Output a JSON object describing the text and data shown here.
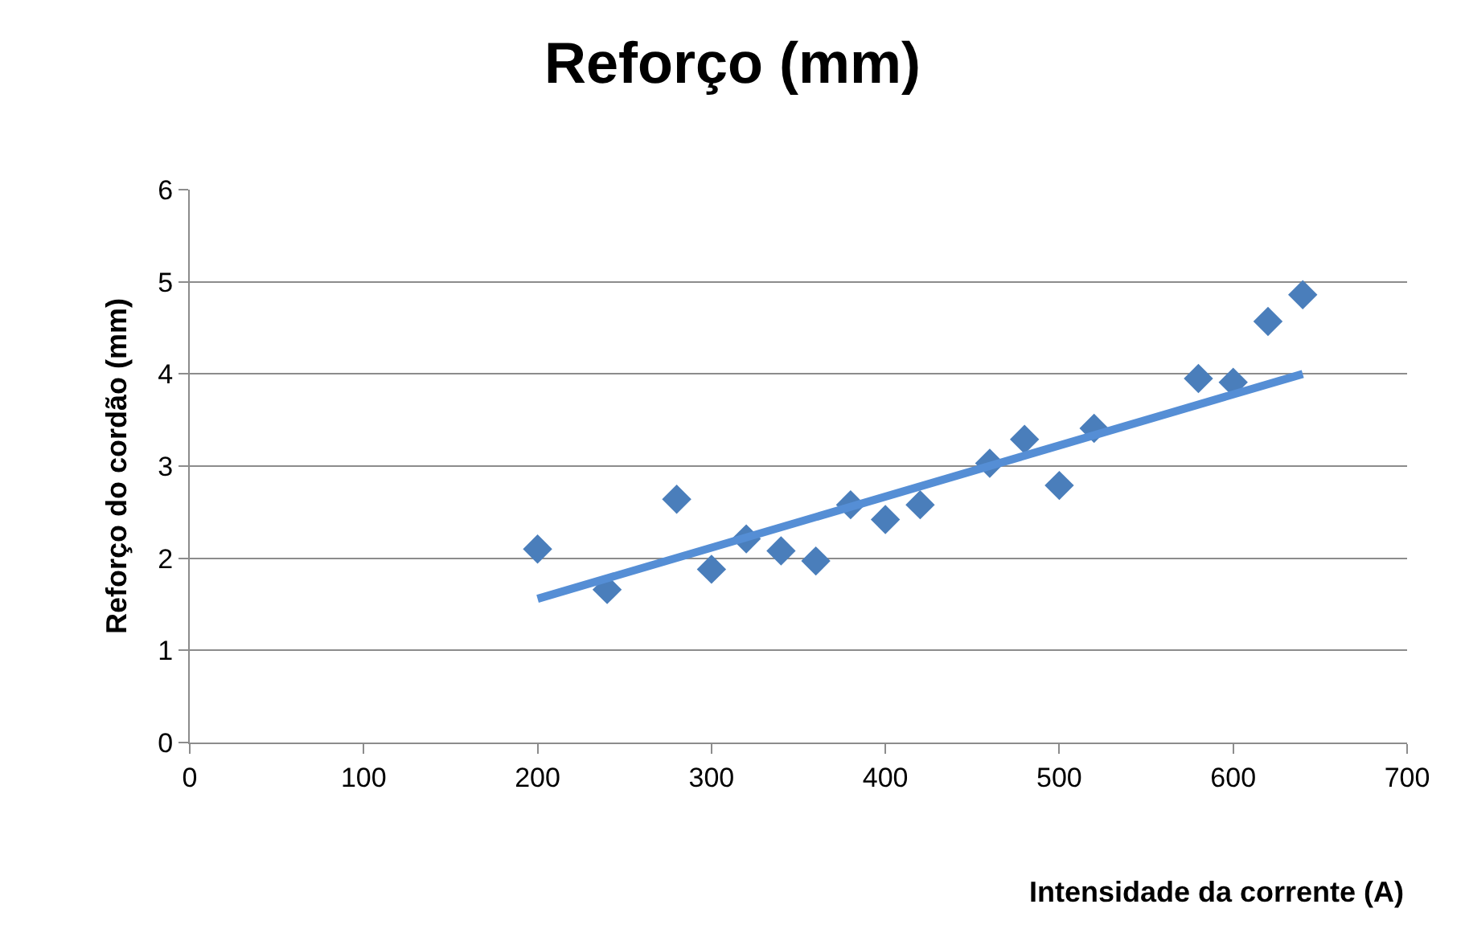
{
  "chart_data": {
    "type": "scatter",
    "title": "Reforço (mm)",
    "xlabel": "Intensidade da corrente (A)",
    "ylabel": "Reforço do cordão (mm)",
    "xlim": [
      0,
      700
    ],
    "xticks": [
      0,
      100,
      200,
      300,
      400,
      500,
      600,
      700
    ],
    "ylim": [
      0,
      6
    ],
    "yticks": [
      0,
      1,
      2,
      3,
      4,
      5,
      6
    ],
    "grid": "y",
    "series": [
      {
        "marker": "diamond",
        "color": "#4a7ebb",
        "x": [
          200,
          240,
          280,
          300,
          320,
          340,
          360,
          380,
          400,
          420,
          460,
          480,
          500,
          520,
          580,
          600,
          620,
          640
        ],
        "values": [
          2.1,
          1.66,
          2.64,
          1.88,
          2.21,
          2.08,
          1.97,
          2.58,
          2.42,
          2.58,
          3.03,
          3.29,
          2.79,
          3.41,
          3.95,
          3.91,
          4.57,
          4.86
        ]
      },
      {
        "type": "line",
        "marker": "none",
        "color": "#558ed5",
        "x": [
          200,
          640
        ],
        "values": [
          1.56,
          4.0
        ]
      }
    ]
  }
}
